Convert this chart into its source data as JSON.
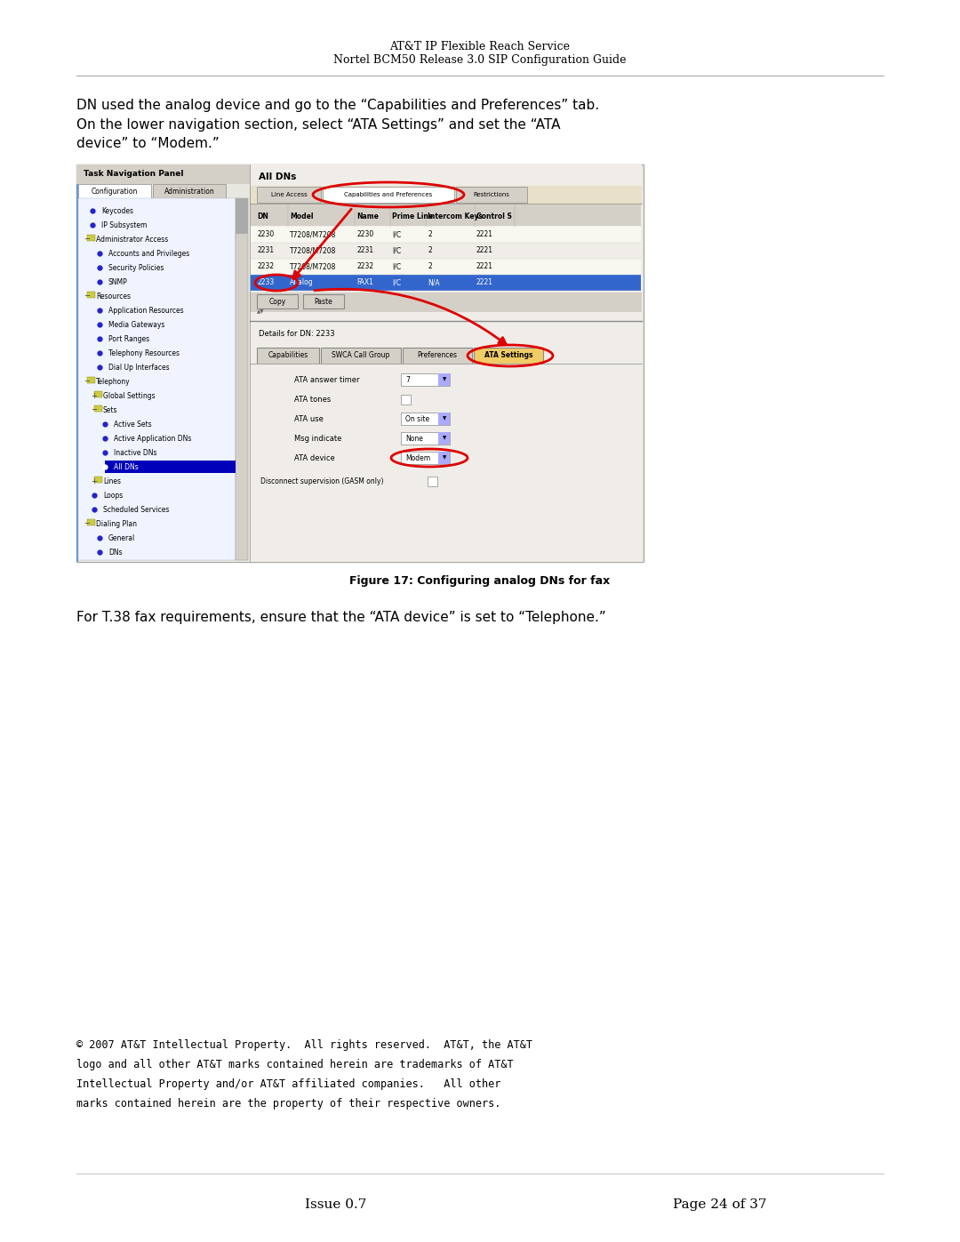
{
  "bg_color": "#ffffff",
  "header_line1": "AT&T IP Flexible Reach Service",
  "header_line2": "Nortel BCM50 Release 3.0 SIP Configuration Guide",
  "body_text1": "DN used the analog device and go to the “Capabilities and Preferences” tab.",
  "body_text2": "On the lower navigation section, select “ATA Settings” and set the “ATA",
  "body_text3": "device” to “Modem.”",
  "figure_caption": "Figure 17: Configuring analog DNs for fax",
  "t38_text": "For T.38 fax requirements, ensure that the “ATA device” is set to “Telephone.”",
  "footer_copyright": "© 2007 AT&T Intellectual Property.  All rights reserved.  AT&T, the AT&T",
  "footer_line2": "logo and all other AT&T marks contained herein are trademarks of AT&T",
  "footer_line3": "Intellectual Property and/or AT&T affiliated companies.   All other",
  "footer_line4": "marks contained herein are the property of their respective owners.",
  "footer_issue": "Issue 0.7",
  "footer_page": "Page 24 of 37",
  "page_width": 10.8,
  "page_height": 13.97,
  "dpi": 100
}
